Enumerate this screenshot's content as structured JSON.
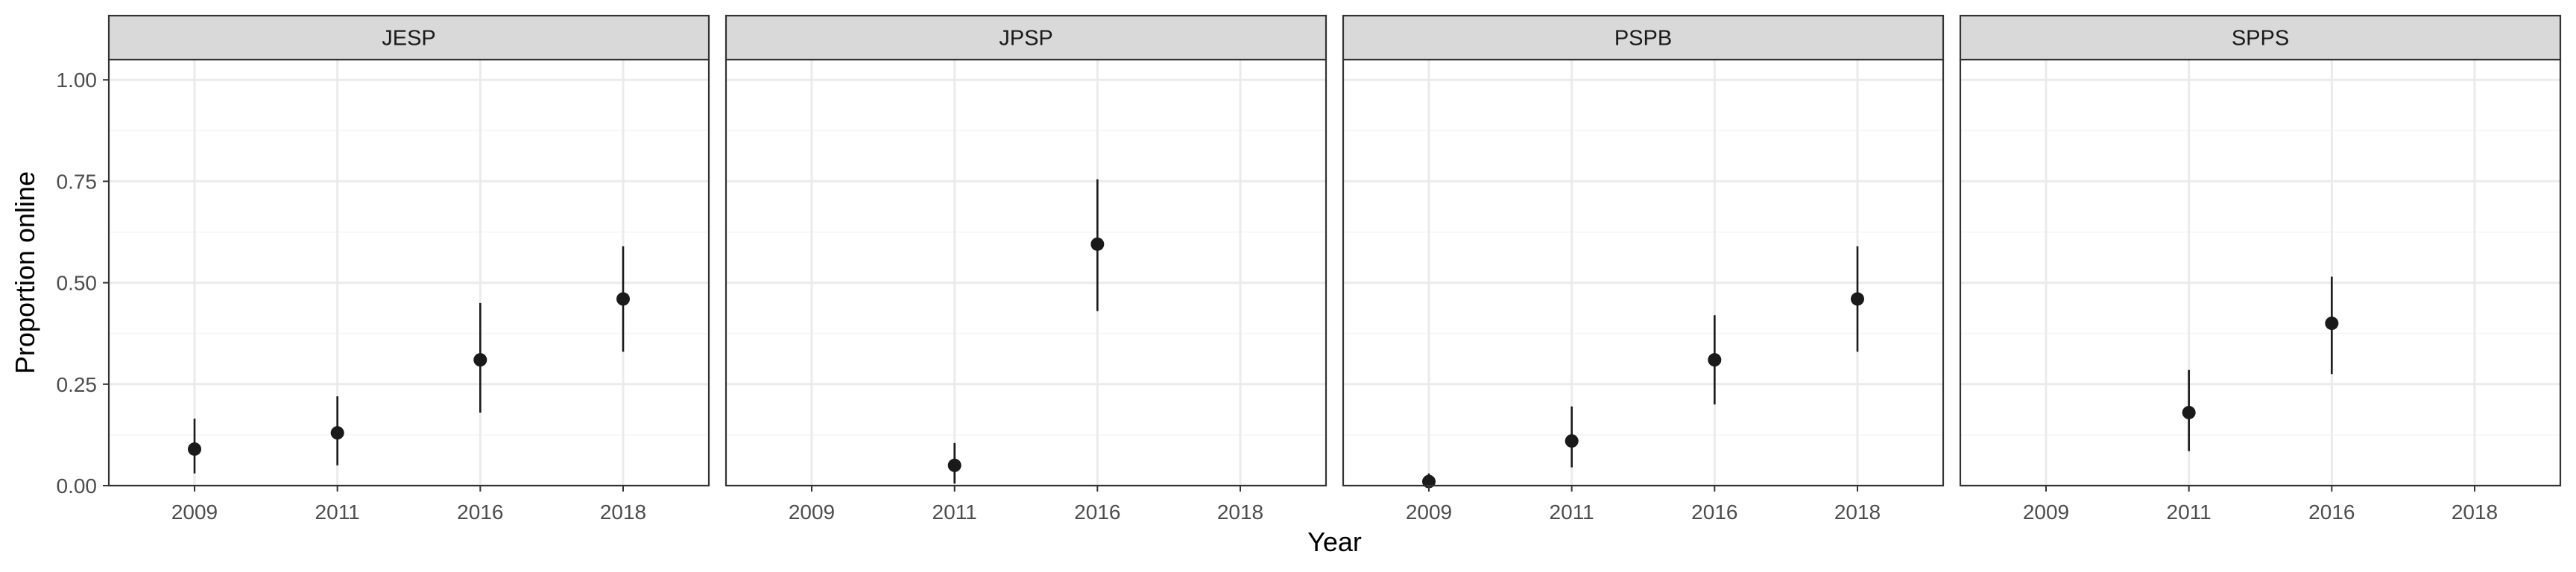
{
  "chart_data": {
    "type": "scatter",
    "subtype": "point-range (faceted)",
    "xlabel": "Year",
    "ylabel": "Proportion online",
    "ylim": [
      0,
      1.05
    ],
    "y_ticks": [
      0,
      0.25,
      0.5,
      0.75,
      1.0
    ],
    "y_tick_labels": [
      "0.00",
      "0.25",
      "0.50",
      "0.75",
      "1.00"
    ],
    "categories": [
      "2009",
      "2011",
      "2016",
      "2018"
    ],
    "grid": true,
    "legend": "none",
    "colors": {
      "point": "#1a1a1a",
      "errorbar": "#1a1a1a",
      "strip_background": "#d9d9d9",
      "panel_border": "#333333",
      "grid_major": "#ebebeb",
      "grid_minor": "#f5f5f5"
    },
    "panels": [
      {
        "name": "JESP",
        "points": [
          {
            "x": "2009",
            "y": 0.09,
            "ymin": 0.03,
            "ymax": 0.165
          },
          {
            "x": "2011",
            "y": 0.13,
            "ymin": 0.05,
            "ymax": 0.22
          },
          {
            "x": "2016",
            "y": 0.31,
            "ymin": 0.18,
            "ymax": 0.45
          },
          {
            "x": "2018",
            "y": 0.46,
            "ymin": 0.33,
            "ymax": 0.59
          }
        ]
      },
      {
        "name": "JPSP",
        "points": [
          {
            "x": "2011",
            "y": 0.05,
            "ymin": 0.005,
            "ymax": 0.105
          },
          {
            "x": "2016",
            "y": 0.595,
            "ymin": 0.43,
            "ymax": 0.755
          }
        ]
      },
      {
        "name": "PSPB",
        "points": [
          {
            "x": "2009",
            "y": 0.01,
            "ymin": 0.0,
            "ymax": 0.03
          },
          {
            "x": "2011",
            "y": 0.11,
            "ymin": 0.045,
            "ymax": 0.195
          },
          {
            "x": "2016",
            "y": 0.31,
            "ymin": 0.2,
            "ymax": 0.42
          },
          {
            "x": "2018",
            "y": 0.46,
            "ymin": 0.33,
            "ymax": 0.59
          }
        ]
      },
      {
        "name": "SPPS",
        "points": [
          {
            "x": "2011",
            "y": 0.18,
            "ymin": 0.085,
            "ymax": 0.285
          },
          {
            "x": "2016",
            "y": 0.4,
            "ymin": 0.275,
            "ymax": 0.515
          }
        ]
      }
    ]
  }
}
